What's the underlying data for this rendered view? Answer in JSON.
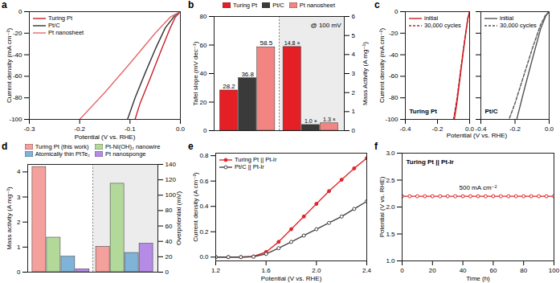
{
  "chart_data": [
    {
      "label": "a",
      "type": "line",
      "xlabel": "Potential (V vs. RHE)",
      "ylabel": "Current density (mA cm⁻²)",
      "xlim": [
        -0.3,
        0
      ],
      "xticks": [
        -0.3,
        -0.2,
        -0.1,
        {
          "value": 0,
          "label": "0.0"
        }
      ],
      "ylim": [
        -100,
        0
      ],
      "yticks": [
        -100,
        -80,
        -60,
        -40,
        -20,
        0
      ],
      "legend": "top-left",
      "series": [
        {
          "name": "Turing Pt",
          "color": "#c62127",
          "line_style": "solid",
          "x": [
            0,
            -0.01,
            -0.02,
            -0.04,
            -0.06,
            -0.08,
            -0.09
          ],
          "values": [
            0,
            -5,
            -15,
            -38,
            -62,
            -85,
            -100
          ]
        },
        {
          "name": "Pt/C",
          "color": "#333333",
          "line_style": "solid",
          "x": [
            0,
            -0.01,
            -0.03,
            -0.05,
            -0.07,
            -0.09,
            -0.105
          ],
          "values": [
            0,
            -3,
            -15,
            -35,
            -57,
            -80,
            -100
          ]
        },
        {
          "name": "Pt nanosheet",
          "color": "#e8676b",
          "line_style": "solid",
          "x": [
            0,
            -0.02,
            -0.05,
            -0.1,
            -0.15,
            -0.2
          ],
          "values": [
            0,
            -5,
            -20,
            -48,
            -75,
            -100
          ]
        }
      ]
    },
    {
      "label": "b",
      "type": "bar",
      "categories": [
        "Turing Pt",
        "Pt/C",
        "Pt nanosheet"
      ],
      "colors": [
        "#e41f26",
        "#3a3a3a",
        "#f28482"
      ],
      "ylabel": "Tafel slope (mV dec⁻¹)",
      "ylim": [
        0,
        80
      ],
      "yticks": [
        0,
        20,
        40,
        60,
        80
      ],
      "y2label": "Mass Activity (A mg⁻¹)",
      "y2lim": [
        0,
        6
      ],
      "y2ticks": [
        0,
        1,
        2,
        3,
        4,
        5,
        6
      ],
      "legend": "top",
      "annotations": [
        "@ 100 mV"
      ],
      "series": [
        {
          "values": [
            28.2,
            36.8,
            58.5
          ],
          "data_labels": true
        },
        {
          "axis": "y2",
          "values": [
            4.4,
            0.3,
            0.39
          ],
          "annotations": [
            "14.8 ×",
            "1.0 ×",
            "1.3 ×"
          ]
        }
      ]
    },
    {
      "label": "c",
      "type": "line",
      "xlabel": "Potential (V vs. RHE)",
      "ylabel": "Current density (mA cm⁻²)",
      "subplots": [
        {
          "title": "Turing Pt",
          "xlim": [
            -0.4,
            0
          ],
          "xticks": [
            -0.4,
            -0.2,
            {
              "value": 0,
              "label": "0.0"
            }
          ],
          "ylim": [
            -100,
            0
          ],
          "yticks": [
            -100,
            -80,
            -60,
            -40,
            -20,
            0
          ],
          "legend": "top-left",
          "series": [
            {
              "name": "initial",
              "color": "#c62127",
              "line_style": "solid",
              "x": [
                0,
                -0.01,
                -0.02,
                -0.04,
                -0.06,
                -0.08,
                -0.095
              ],
              "values": [
                0,
                -6,
                -16,
                -38,
                -62,
                -86,
                -100
              ]
            },
            {
              "name": "30,000 cycles",
              "color": "#c62127",
              "line_style": "dashed",
              "x": [
                0,
                -0.01,
                -0.02,
                -0.04,
                -0.06,
                -0.08,
                -0.1
              ],
              "values": [
                0,
                -5,
                -15,
                -36,
                -59,
                -82,
                -100
              ]
            }
          ]
        },
        {
          "title": "Pt/C",
          "xlim": [
            -0.4,
            0
          ],
          "xticks": [
            -0.4,
            -0.2,
            {
              "value": 0,
              "label": "0.0"
            }
          ],
          "ylim": [
            -100,
            0
          ],
          "yticks": [
            -100,
            -80,
            -60,
            -40,
            -20,
            0
          ],
          "tick_labels": "x",
          "legend": "top-left",
          "series": [
            {
              "name": "initial",
              "color": "#555555",
              "line_style": "solid",
              "x": [
                0,
                -0.02,
                -0.05,
                -0.1,
                -0.15,
                -0.19
              ],
              "values": [
                0,
                -4,
                -16,
                -45,
                -75,
                -100
              ]
            },
            {
              "name": "30,000 cycles",
              "color": "#555555",
              "line_style": "dashed",
              "x": [
                0,
                -0.02,
                -0.05,
                -0.1,
                -0.15,
                -0.2,
                -0.235
              ],
              "values": [
                0,
                -3,
                -12,
                -35,
                -60,
                -85,
                -100
              ]
            }
          ]
        }
      ]
    },
    {
      "label": "d",
      "type": "bar",
      "categories": [
        "Turing Pt (this work)",
        "Pt-Ni(OH)₂ nanowire",
        "Atomically thin PtTe₂",
        "Pt nanosponge"
      ],
      "colors": [
        "#f4a09c",
        "#b3d99a",
        "#7fb3d8",
        "#b58be6"
      ],
      "ylabel": "Mass activity (A mg⁻¹)",
      "ylim": [
        0,
        4.3
      ],
      "yticks": [
        0,
        1,
        2,
        3,
        4
      ],
      "y2label": "Overpotential (mV)",
      "y2lim": [
        0,
        140
      ],
      "y2ticks": [
        0,
        20,
        40,
        60,
        80,
        100,
        120,
        140
      ],
      "legend": "top",
      "series": [
        {
          "values": [
            4.2,
            1.38,
            0.62,
            0.12
          ]
        },
        {
          "axis": "y2",
          "values": [
            33,
            115,
            25,
            37
          ]
        }
      ]
    },
    {
      "label": "e",
      "type": "line",
      "xlabel": "Potential (V vs. RHE)",
      "ylabel": "Current density (A cm⁻²)",
      "xlim": [
        1.2,
        2.4
      ],
      "xticks": [
        1.2,
        1.6,
        {
          "value": 2,
          "label": "2.0"
        },
        2.4
      ],
      "ylim": [
        -0.03,
        0.82
      ],
      "yticks": [
        {
          "value": 0,
          "label": "0.0"
        },
        0.2,
        0.4,
        0.6,
        0.8
      ],
      "legend": "top-left",
      "x": [
        1.2,
        1.3,
        1.4,
        1.5,
        1.6,
        1.7,
        1.8,
        1.9,
        2.0,
        2.1,
        2.2,
        2.3,
        2.4
      ],
      "series": [
        {
          "name": "Turing Pt || Pt-Ir",
          "color": "#e0262b",
          "line_style": "solid",
          "marker": "circle",
          "values": [
            0,
            0,
            0,
            0.005,
            0.04,
            0.12,
            0.22,
            0.32,
            0.42,
            0.52,
            0.61,
            0.7,
            0.78
          ]
        },
        {
          "name": "Pt/C || Pt-Ir",
          "color": "#444444",
          "line_style": "solid",
          "marker": "open circle",
          "values": [
            0,
            0,
            0,
            0.003,
            0.025,
            0.07,
            0.12,
            0.17,
            0.22,
            0.27,
            0.32,
            0.38,
            0.44
          ]
        }
      ]
    },
    {
      "label": "f",
      "type": "line",
      "title": "Turing Pt || Pt-Ir",
      "annotations": [
        "500 mA cm⁻²"
      ],
      "xlabel": "Time (h)",
      "ylabel": "Potential (V vs. RHE)",
      "xlim": [
        0,
        100
      ],
      "xticks": [
        0,
        20,
        40,
        60,
        80,
        100
      ],
      "ylim": [
        1,
        3
      ],
      "yticks": [
        {
          "value": 1,
          "label": "1.0"
        },
        1.5,
        {
          "value": 2,
          "label": "2.0"
        },
        2.5,
        {
          "value": 3,
          "label": "3.0"
        }
      ],
      "x": [
        0,
        5,
        10,
        15,
        20,
        25,
        30,
        35,
        40,
        45,
        50,
        55,
        60,
        65,
        70,
        75,
        80,
        85,
        90,
        95,
        100
      ],
      "series": [
        {
          "color": "#e0262b",
          "line_style": "solid",
          "marker": "open circle",
          "values": [
            2.2,
            2.2,
            2.2,
            2.2,
            2.2,
            2.2,
            2.2,
            2.2,
            2.2,
            2.2,
            2.2,
            2.2,
            2.2,
            2.2,
            2.2,
            2.2,
            2.2,
            2.2,
            2.2,
            2.2,
            2.2
          ]
        }
      ]
    }
  ]
}
